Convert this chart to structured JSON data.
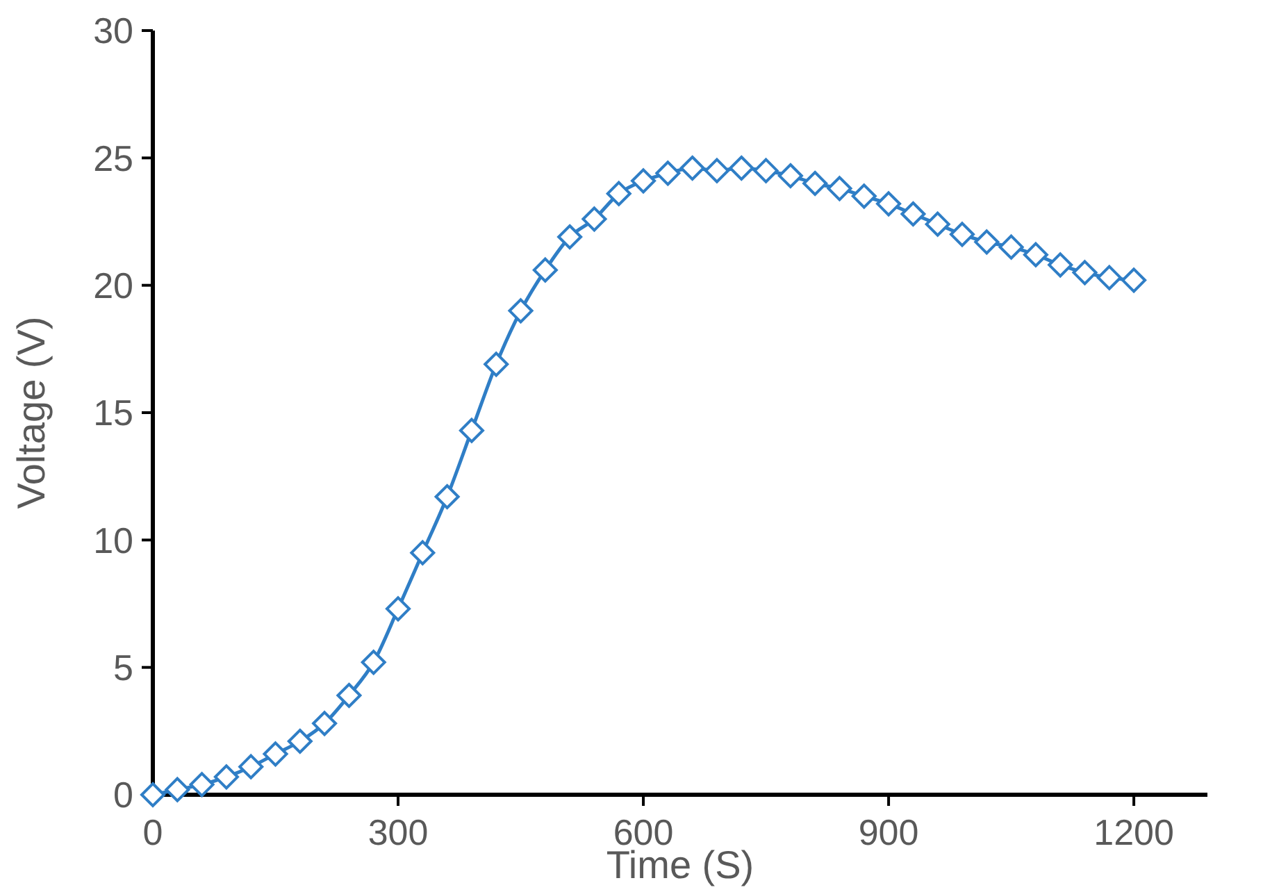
{
  "chart_data": {
    "type": "line",
    "xlabel": "Time (S)",
    "ylabel": "Voltage (V)",
    "xlim": [
      0,
      1290
    ],
    "xticks": [
      0,
      300,
      600,
      900,
      1200
    ],
    "ylim": [
      0,
      30
    ],
    "yticks": [
      0,
      5,
      10,
      15,
      20,
      25,
      30
    ],
    "marker": "diamond",
    "line_style": "solid",
    "grid": false,
    "series": [
      {
        "color": "#2f7ec6",
        "x": [
          0,
          30,
          60,
          90,
          120,
          150,
          180,
          210,
          240,
          270,
          300,
          330,
          360,
          390,
          420,
          450,
          480,
          510,
          540,
          570,
          600,
          630,
          660,
          690,
          720,
          750,
          780,
          810,
          840,
          870,
          900,
          930,
          960,
          990,
          1020,
          1050,
          1080,
          1110,
          1140,
          1170,
          1200
        ],
        "values": [
          0,
          0.2,
          0.4,
          0.7,
          1.1,
          1.6,
          2.1,
          2.8,
          3.9,
          5.2,
          7.3,
          9.5,
          11.7,
          14.3,
          16.9,
          19.0,
          20.6,
          21.9,
          22.6,
          23.6,
          24.1,
          24.4,
          24.6,
          24.5,
          24.6,
          24.5,
          24.3,
          24.0,
          23.8,
          23.5,
          23.2,
          22.8,
          22.4,
          22.0,
          21.7,
          21.5,
          21.2,
          20.8,
          20.5,
          20.3,
          20.2
        ]
      }
    ]
  }
}
